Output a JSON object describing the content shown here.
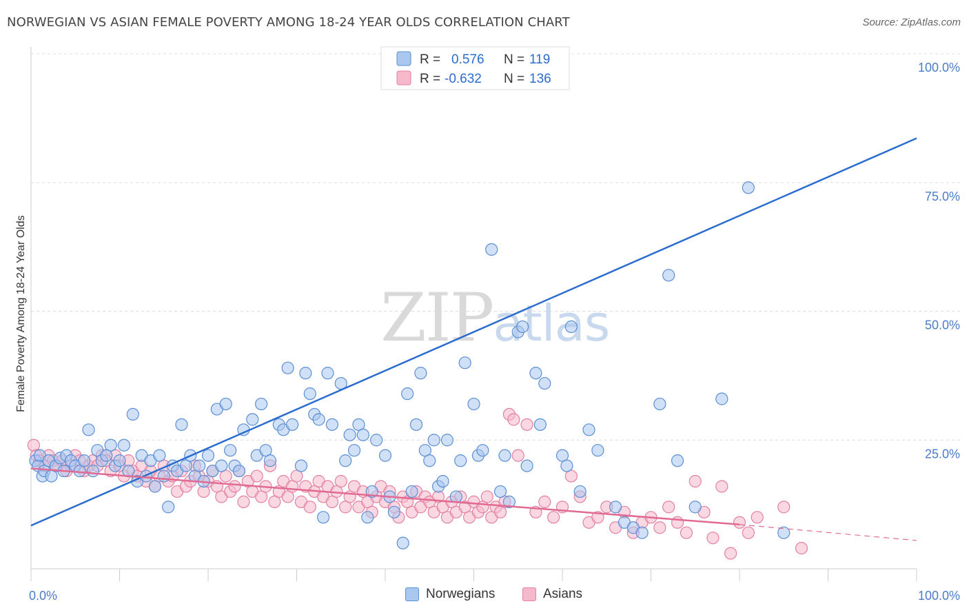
{
  "title": "NORWEGIAN VS ASIAN FEMALE POVERTY AMONG 18-24 YEAR OLDS CORRELATION CHART",
  "source": "Source: ZipAtlas.com",
  "watermark": {
    "zip": "ZIP",
    "atlas": "atlas"
  },
  "colors": {
    "norwegians_fill": "#a9c7ef",
    "norwegians_stroke": "#5b8fd6",
    "norwegians_line": "#2a6ccf",
    "asians_fill": "#f6b8cb",
    "asians_stroke": "#e57fa2",
    "asians_line": "#e06a92",
    "grid": "#dcdcdc",
    "tick_label": "#4a7cc9"
  },
  "legend": {
    "rows": [
      {
        "r_label": "R =",
        "r_value": "0.576",
        "n_label": "N =",
        "n_value": "119"
      },
      {
        "r_label": "R =",
        "r_value": "-0.632",
        "n_label": "N =",
        "n_value": "136"
      }
    ]
  },
  "bottom_legend": {
    "norwegians": "Norwegians",
    "asians": "Asians"
  },
  "chart_data": {
    "type": "scatter",
    "title": "NORWEGIAN VS ASIAN FEMALE POVERTY AMONG 18-24 YEAR OLDS CORRELATION CHART",
    "xlabel": "",
    "ylabel": "Female Poverty Among 18-24 Year Olds",
    "xlim": [
      0,
      100
    ],
    "ylim": [
      0,
      100
    ],
    "x_tick_labels": [
      "0.0%",
      "100.0%"
    ],
    "y_ticks": [
      25,
      50,
      75,
      100
    ],
    "y_tick_labels": [
      "25.0%",
      "50.0%",
      "75.0%",
      "100.0%"
    ],
    "grid": true,
    "legend_placement": "top-center",
    "series": [
      {
        "name": "Norwegians",
        "r": 0.576,
        "n": 119,
        "trend": {
          "x": [
            0,
            100
          ],
          "y": [
            8.4,
            83.6
          ]
        },
        "points": [
          [
            0.5,
            21
          ],
          [
            0.8,
            20
          ],
          [
            1,
            22
          ],
          [
            1.3,
            18
          ],
          [
            1.5,
            19
          ],
          [
            2,
            21
          ],
          [
            2.3,
            18
          ],
          [
            2.8,
            20
          ],
          [
            3.3,
            21.5
          ],
          [
            3.7,
            19
          ],
          [
            4,
            22
          ],
          [
            4.5,
            21
          ],
          [
            5,
            20
          ],
          [
            5.5,
            19
          ],
          [
            6,
            21
          ],
          [
            6.5,
            27
          ],
          [
            7,
            19
          ],
          [
            7.5,
            23
          ],
          [
            8,
            21
          ],
          [
            8.5,
            22
          ],
          [
            9,
            24
          ],
          [
            9.5,
            20
          ],
          [
            10,
            21
          ],
          [
            10.5,
            24
          ],
          [
            11,
            19
          ],
          [
            11.5,
            30
          ],
          [
            12,
            17
          ],
          [
            12.5,
            22
          ],
          [
            13,
            18
          ],
          [
            13.5,
            21
          ],
          [
            14,
            16
          ],
          [
            14.5,
            22
          ],
          [
            15,
            18
          ],
          [
            15.5,
            12
          ],
          [
            16,
            20
          ],
          [
            16.5,
            19
          ],
          [
            17,
            28
          ],
          [
            17.5,
            20
          ],
          [
            18,
            22
          ],
          [
            18.5,
            18
          ],
          [
            19,
            20
          ],
          [
            19.5,
            17
          ],
          [
            20,
            22
          ],
          [
            20.5,
            19
          ],
          [
            21,
            31
          ],
          [
            21.5,
            20
          ],
          [
            22,
            32
          ],
          [
            22.5,
            23
          ],
          [
            23,
            20
          ],
          [
            23.5,
            19
          ],
          [
            24,
            27
          ],
          [
            25,
            29
          ],
          [
            25.5,
            22
          ],
          [
            26,
            32
          ],
          [
            26.5,
            23
          ],
          [
            27,
            21
          ],
          [
            28,
            28
          ],
          [
            28.5,
            27
          ],
          [
            29,
            39
          ],
          [
            29.5,
            28
          ],
          [
            30.5,
            20
          ],
          [
            31,
            38
          ],
          [
            31.5,
            34
          ],
          [
            32,
            30
          ],
          [
            32.5,
            29
          ],
          [
            33,
            10
          ],
          [
            33.5,
            38
          ],
          [
            34,
            28
          ],
          [
            35,
            36
          ],
          [
            35.5,
            21
          ],
          [
            36,
            26
          ],
          [
            36.5,
            23
          ],
          [
            37,
            28
          ],
          [
            37.5,
            26
          ],
          [
            38,
            10
          ],
          [
            38.5,
            15
          ],
          [
            39,
            25
          ],
          [
            40,
            22
          ],
          [
            40.5,
            14
          ],
          [
            41,
            11
          ],
          [
            42,
            5
          ],
          [
            42.5,
            34
          ],
          [
            43,
            15
          ],
          [
            43.5,
            28
          ],
          [
            44,
            38
          ],
          [
            44.5,
            23
          ],
          [
            45,
            21
          ],
          [
            45.5,
            25
          ],
          [
            46,
            16
          ],
          [
            46.5,
            17
          ],
          [
            47,
            25
          ],
          [
            48,
            14
          ],
          [
            48.5,
            21
          ],
          [
            49,
            40
          ],
          [
            50,
            32
          ],
          [
            50.5,
            22
          ],
          [
            51,
            23
          ],
          [
            52,
            62
          ],
          [
            53,
            15
          ],
          [
            53.5,
            22
          ],
          [
            54,
            13
          ],
          [
            55,
            46
          ],
          [
            55.5,
            47
          ],
          [
            56,
            20
          ],
          [
            57,
            38
          ],
          [
            57.5,
            28
          ],
          [
            58,
            36
          ],
          [
            60,
            22
          ],
          [
            60.5,
            20
          ],
          [
            61,
            47
          ],
          [
            62,
            15
          ],
          [
            63,
            27
          ],
          [
            64,
            23
          ],
          [
            66,
            12
          ],
          [
            67,
            9
          ],
          [
            68,
            8
          ],
          [
            69,
            7
          ],
          [
            71,
            32
          ],
          [
            72,
            57
          ],
          [
            73,
            21
          ],
          [
            75,
            12
          ],
          [
            78,
            33
          ],
          [
            81,
            74
          ],
          [
            85,
            7
          ]
        ]
      },
      {
        "name": "Asians",
        "r": -0.632,
        "n": 136,
        "trend": {
          "x": [
            0,
            80,
            100
          ],
          "y": [
            19.5,
            8.6,
            5.5
          ]
        },
        "points": [
          [
            0.3,
            24
          ],
          [
            0.6,
            22
          ],
          [
            1,
            21
          ],
          [
            1.5,
            20
          ],
          [
            2,
            22
          ],
          [
            2.5,
            21
          ],
          [
            3,
            20
          ],
          [
            3.5,
            21
          ],
          [
            4,
            19
          ],
          [
            4.5,
            20
          ],
          [
            5,
            22
          ],
          [
            5.5,
            21
          ],
          [
            6,
            19
          ],
          [
            6.5,
            20
          ],
          [
            7,
            21
          ],
          [
            7.5,
            20
          ],
          [
            8,
            22
          ],
          [
            8.5,
            21
          ],
          [
            9,
            19
          ],
          [
            9.5,
            22
          ],
          [
            10,
            20
          ],
          [
            10.5,
            18
          ],
          [
            11,
            21
          ],
          [
            11.5,
            19
          ],
          [
            12,
            18
          ],
          [
            12.5,
            20
          ],
          [
            13,
            17
          ],
          [
            13.5,
            19
          ],
          [
            14,
            16
          ],
          [
            14.5,
            18
          ],
          [
            15,
            20
          ],
          [
            15.5,
            17
          ],
          [
            16,
            18
          ],
          [
            16.5,
            15
          ],
          [
            17,
            19
          ],
          [
            17.5,
            16
          ],
          [
            18,
            17
          ],
          [
            18.5,
            20
          ],
          [
            19,
            18
          ],
          [
            19.5,
            15
          ],
          [
            20,
            17
          ],
          [
            20.5,
            19
          ],
          [
            21,
            16
          ],
          [
            21.5,
            14
          ],
          [
            22,
            18
          ],
          [
            22.5,
            15
          ],
          [
            23,
            16
          ],
          [
            23.5,
            19
          ],
          [
            24,
            13
          ],
          [
            24.5,
            17
          ],
          [
            25,
            15
          ],
          [
            25.5,
            18
          ],
          [
            26,
            14
          ],
          [
            26.5,
            16
          ],
          [
            27,
            20
          ],
          [
            27.5,
            13
          ],
          [
            28,
            15
          ],
          [
            28.5,
            17
          ],
          [
            29,
            14
          ],
          [
            29.5,
            16
          ],
          [
            30,
            18
          ],
          [
            30.5,
            13
          ],
          [
            31,
            16
          ],
          [
            31.5,
            12
          ],
          [
            32,
            15
          ],
          [
            32.5,
            17
          ],
          [
            33,
            14
          ],
          [
            33.5,
            16
          ],
          [
            34,
            13
          ],
          [
            34.5,
            15
          ],
          [
            35,
            17
          ],
          [
            35.5,
            12
          ],
          [
            36,
            14
          ],
          [
            36.5,
            16
          ],
          [
            37,
            12
          ],
          [
            37.5,
            15
          ],
          [
            38,
            13
          ],
          [
            38.5,
            11
          ],
          [
            39,
            14
          ],
          [
            39.5,
            16
          ],
          [
            40,
            13
          ],
          [
            40.5,
            15
          ],
          [
            41,
            12
          ],
          [
            41.5,
            10
          ],
          [
            42,
            14
          ],
          [
            42.5,
            13
          ],
          [
            43,
            11
          ],
          [
            43.5,
            15
          ],
          [
            44,
            12
          ],
          [
            44.5,
            14
          ],
          [
            45,
            13
          ],
          [
            45.5,
            11
          ],
          [
            46,
            14
          ],
          [
            46.5,
            12
          ],
          [
            47,
            10
          ],
          [
            47.5,
            13
          ],
          [
            48,
            11
          ],
          [
            48.5,
            14
          ],
          [
            49,
            12
          ],
          [
            49.5,
            10
          ],
          [
            50,
            13
          ],
          [
            50.5,
            11
          ],
          [
            51,
            12
          ],
          [
            51.5,
            14
          ],
          [
            52,
            10
          ],
          [
            52.5,
            12
          ],
          [
            53,
            11
          ],
          [
            53.5,
            13
          ],
          [
            54,
            30
          ],
          [
            54.5,
            29
          ],
          [
            55,
            22
          ],
          [
            56,
            28
          ],
          [
            57,
            11
          ],
          [
            58,
            13
          ],
          [
            59,
            10
          ],
          [
            60,
            12
          ],
          [
            61,
            18
          ],
          [
            62,
            14
          ],
          [
            63,
            9
          ],
          [
            64,
            10
          ],
          [
            65,
            12
          ],
          [
            66,
            8
          ],
          [
            67,
            11
          ],
          [
            68,
            7
          ],
          [
            69,
            9
          ],
          [
            70,
            10
          ],
          [
            71,
            8
          ],
          [
            72,
            12
          ],
          [
            73,
            9
          ],
          [
            74,
            7
          ],
          [
            75,
            17
          ],
          [
            76,
            11
          ],
          [
            77,
            6
          ],
          [
            78,
            16
          ],
          [
            79,
            3
          ],
          [
            80,
            9
          ],
          [
            81,
            7
          ],
          [
            82,
            10
          ],
          [
            85,
            12
          ],
          [
            87,
            4
          ]
        ]
      }
    ]
  }
}
